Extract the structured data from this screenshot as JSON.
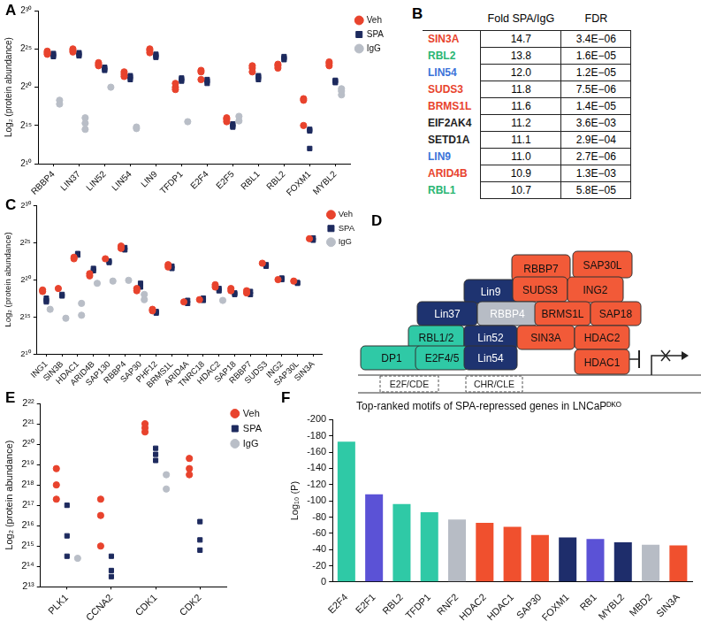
{
  "chart_data": [
    {
      "panel": "A",
      "type": "scatter",
      "y_label": "Log₂ (protein abundance)",
      "categories": [
        "RBBP4",
        "LIN37",
        "LIN52",
        "LIN54",
        "LIN9",
        "TFDP1",
        "E2F4",
        "E2F5",
        "RBL1",
        "RBL2",
        "FOXM1",
        "MYBL2"
      ],
      "series": [
        {
          "name": "Veh",
          "color": "#e8432d",
          "marker": "circle",
          "values": [
            [
              24.5,
              24.3,
              24.7
            ],
            [
              24.8,
              24.6,
              25.0
            ],
            [
              23.2,
              23.0,
              22.8
            ],
            [
              22.0,
              21.7,
              21.4
            ],
            [
              24.8,
              24.5,
              25.0
            ],
            [
              20.0,
              20.5,
              19.7
            ],
            [
              22.2,
              21.0,
              22.0
            ],
            [
              15.8,
              16.0,
              15.5
            ],
            [
              22.5,
              22.0,
              22.8
            ],
            [
              23.0,
              22.8,
              22.5
            ],
            [
              18.5,
              18.3,
              15.0
            ],
            [
              23.1,
              22.8,
              23.3
            ]
          ]
        },
        {
          "name": "SPA",
          "color": "#1d2a5e",
          "marker": "square",
          "values": [
            [
              24.2,
              24.0,
              24.4
            ],
            [
              24.3,
              24.5,
              24.1
            ],
            [
              22.6,
              22.4,
              22.2
            ],
            [
              21.3,
              21.0,
              21.5
            ],
            [
              23.9,
              24.1,
              24.3
            ],
            [
              20.8,
              21.0,
              21.2
            ],
            [
              20.5,
              20.8,
              21.0
            ],
            [
              15.2,
              15.0,
              14.8
            ],
            [
              21.3,
              21.5,
              21.0
            ],
            [
              24.0,
              23.8,
              23.6
            ],
            [
              14.5,
              14.3,
              12.0
            ],
            [
              20.8,
              20.6,
              20.9
            ]
          ]
        },
        {
          "name": "IgG",
          "color": "#b9bec7",
          "marker": "circle",
          "values": [
            [
              18.3,
              17.8
            ],
            [
              16.0,
              14.5,
              15.3
            ],
            [
              20.0
            ],
            [
              14.8,
              14.6
            ],
            null,
            [
              15.5
            ],
            null,
            [
              16.2,
              15.6
            ],
            null,
            null,
            null,
            [
              19.8,
              19.0,
              19.5
            ]
          ]
        }
      ],
      "ylim": [
        10,
        30
      ],
      "yticks": [
        {
          "value": 10,
          "label": "2¹⁰"
        },
        {
          "value": 15,
          "label": "2¹⁵"
        },
        {
          "value": 20,
          "label": "2²⁰"
        },
        {
          "value": 25,
          "label": "2²⁵"
        },
        {
          "value": 30,
          "label": "2³⁰"
        }
      ],
      "grid": false,
      "legend": "right"
    },
    {
      "panel": "C",
      "type": "scatter",
      "y_label": "Log₂ (protein abundance)",
      "categories": [
        "ING1",
        "SIN3B",
        "HDAC1",
        "ARID4B",
        "SAP130",
        "RBBP4",
        "SAP30",
        "PHF12",
        "BRMS1L",
        "ARID4A",
        "TNRC18",
        "HDAC2",
        "SAP18",
        "RBBP7",
        "SUDS3",
        "ING2",
        "SAP30L",
        "SIN3A"
      ],
      "series": [
        {
          "name": "Veh",
          "color": "#e8432d",
          "marker": "circle",
          "values": [
            [
              18.6,
              18.4
            ],
            [
              18.8
            ],
            [
              23.0,
              22.8
            ],
            [
              20.8,
              20.5
            ],
            [
              22.8
            ],
            [
              24.5,
              24.2
            ],
            [
              18.8,
              18.5
            ],
            [
              15.8,
              16.0
            ],
            [
              22.0,
              21.7
            ],
            [
              17.0
            ],
            [
              17.3
            ],
            [
              19.3,
              19.0
            ],
            [
              18.8,
              18.5
            ],
            [
              18.5,
              18.2
            ],
            [
              22.2
            ],
            [
              20.0
            ],
            [
              19.8
            ],
            [
              25.5
            ]
          ]
        },
        {
          "name": "SPA",
          "color": "#1d2a5e",
          "marker": "square",
          "values": [
            [
              17.2,
              17.5,
              17.0
            ],
            [
              17.8,
              18.0
            ],
            [
              23.5,
              23.3
            ],
            [
              21.5,
              21.2
            ],
            [
              22.5,
              22.3
            ],
            [
              24.0,
              24.3
            ],
            [
              19.5,
              19.0
            ],
            [
              15.5,
              15.7
            ],
            [
              21.5,
              21.8
            ],
            [
              16.8,
              17.2
            ],
            [
              17.5,
              17.2
            ],
            [
              18.8,
              18.5
            ],
            [
              18.2,
              18.0
            ],
            [
              18.4,
              18.0
            ],
            [
              22.0,
              21.8
            ],
            [
              20.2,
              20.0
            ],
            [
              19.6,
              19.5
            ],
            [
              25.3,
              25.6
            ]
          ]
        },
        {
          "name": "IgG",
          "color": "#b9bec7",
          "marker": "circle",
          "values": [
            [
              16.0
            ],
            [
              14.8
            ],
            [
              16.8,
              15.2
            ],
            [
              19.5
            ],
            [
              19.8
            ],
            [
              19.9
            ],
            [
              18.0,
              17.3
            ],
            null,
            null,
            null,
            null,
            [
              17.2
            ],
            null,
            null,
            null,
            null,
            null,
            null
          ]
        }
      ],
      "ylim": [
        10,
        30
      ],
      "yticks": [
        {
          "value": 10,
          "label": "2¹⁰"
        },
        {
          "value": 15,
          "label": "2¹⁵"
        },
        {
          "value": 20,
          "label": "2²⁰"
        },
        {
          "value": 25,
          "label": "2²⁵"
        },
        {
          "value": 30,
          "label": "2³⁰"
        }
      ],
      "grid": false,
      "legend": "right"
    },
    {
      "panel": "E",
      "type": "scatter",
      "y_label": "Log₂ (protein abundance)",
      "categories": [
        "PLK1",
        "CCNA2",
        "CDK1",
        "CDK2"
      ],
      "series": [
        {
          "name": "Veh",
          "color": "#e8432d",
          "marker": "circle",
          "values": [
            [
              18.8,
              18.0,
              17.3
            ],
            [
              17.3,
              16.5,
              15.0
            ],
            [
              20.8,
              21.0,
              20.6
            ],
            [
              19.3,
              18.8,
              18.5
            ]
          ]
        },
        {
          "name": "SPA",
          "color": "#1d2a5e",
          "marker": "square",
          "values": [
            [
              17.0,
              15.5,
              14.5
            ],
            [
              14.5,
              13.8,
              13.5
            ],
            [
              19.8,
              19.5,
              19.2
            ],
            [
              16.2,
              15.3,
              14.8
            ]
          ]
        },
        {
          "name": "IgG",
          "color": "#b9bec7",
          "marker": "circle",
          "values": [
            [
              14.4
            ],
            null,
            [
              18.5,
              17.8
            ],
            null
          ]
        }
      ],
      "ylim": [
        13,
        22
      ],
      "yticks": [
        {
          "value": 13,
          "label": "2¹³"
        },
        {
          "value": 14,
          "label": "2¹⁴"
        },
        {
          "value": 15,
          "label": "2¹⁵"
        },
        {
          "value": 16,
          "label": "2¹⁶"
        },
        {
          "value": 17,
          "label": "2¹⁷"
        },
        {
          "value": 18,
          "label": "2¹⁸"
        },
        {
          "value": 19,
          "label": "2¹⁹"
        },
        {
          "value": 20,
          "label": "2²⁰"
        },
        {
          "value": 21,
          "label": "2²¹"
        },
        {
          "value": 22,
          "label": "2²²"
        }
      ],
      "grid": false,
      "legend": "right"
    },
    {
      "panel": "F",
      "type": "bar",
      "title": "Top-ranked motifs of SPA-repressed genes in LNCaPᴰᴷᴼ",
      "y_label": "Log₁₀ (P)",
      "categories": [
        "E2F4",
        "E2F1",
        "RBL2",
        "TFDP1",
        "RNF2",
        "HDAC2",
        "HDAC1",
        "SAP30",
        "FOXM1",
        "RB1",
        "MYBL2",
        "MBD2",
        "SIN3A"
      ],
      "values": [
        -173,
        -108,
        -96,
        -86,
        -77,
        -73,
        -68,
        -58,
        -55,
        -53,
        -49,
        -46,
        -45
      ],
      "colors": [
        "#2fc9a6",
        "#5b52d6",
        "#2fc9a6",
        "#2fc9a6",
        "#b7bcc5",
        "#f0502e",
        "#f0502e",
        "#f0502e",
        "#1e2d6b",
        "#5b52d6",
        "#1e2d6b",
        "#b7bcc5",
        "#f0502e"
      ],
      "ylim": [
        0,
        -200
      ],
      "yticks": [
        0,
        -20,
        -40,
        -60,
        -80,
        -100,
        -120,
        -140,
        -160,
        -180,
        -200
      ],
      "grid": false
    }
  ],
  "table": {
    "panel": "B",
    "header": [
      "Fold SPA/IgG",
      "FDR"
    ],
    "rows": [
      {
        "gene": "SIN3A",
        "color": "#e8432d",
        "fold": "14.7",
        "fdr": "3.4E−06"
      },
      {
        "gene": "RBL2",
        "color": "#2bb673",
        "fold": "13.8",
        "fdr": "1.6E−05"
      },
      {
        "gene": "LIN54",
        "color": "#3b73d9",
        "fold": "12.0",
        "fdr": "1.2E−05"
      },
      {
        "gene": "SUDS3",
        "color": "#e8432d",
        "fold": "11.8",
        "fdr": "7.5E−06"
      },
      {
        "gene": "BRMS1L",
        "color": "#e8432d",
        "fold": "11.6",
        "fdr": "1.4E−05"
      },
      {
        "gene": "EIF2AK4",
        "color": "#222222",
        "fold": "11.2",
        "fdr": "3.6E−03"
      },
      {
        "gene": "SETD1A",
        "color": "#222222",
        "fold": "11.1",
        "fdr": "2.9E−04"
      },
      {
        "gene": "LIN9",
        "color": "#3b73d9",
        "fold": "11.0",
        "fdr": "2.7E−06"
      },
      {
        "gene": "ARID4B",
        "color": "#e8432d",
        "fold": "10.9",
        "fdr": "1.3E−03"
      },
      {
        "gene": "RBL1",
        "color": "#2bb673",
        "fold": "10.7",
        "fdr": "5.8E−05"
      }
    ]
  },
  "diagram": {
    "panel": "D",
    "nodes": [
      {
        "label": "RBBP7",
        "color": "#f25a38"
      },
      {
        "label": "SAP30L",
        "color": "#f25a38"
      },
      {
        "label": "Lin9",
        "color": "#1e3370"
      },
      {
        "label": "SUDS3",
        "color": "#f25a38"
      },
      {
        "label": "ING2",
        "color": "#f25a38"
      },
      {
        "label": "Lin37",
        "color": "#1e3370"
      },
      {
        "label": "RBBP4",
        "color": "#b7bcc5"
      },
      {
        "label": "BRMS1L",
        "color": "#f25a38"
      },
      {
        "label": "SAP18",
        "color": "#f25a38"
      },
      {
        "label": "RBL1/2",
        "color": "#2fc9a6"
      },
      {
        "label": "Lin52",
        "color": "#1e3370"
      },
      {
        "label": "SIN3A",
        "color": "#f25a38"
      },
      {
        "label": "HDAC2",
        "color": "#f25a38"
      },
      {
        "label": "DP1",
        "color": "#2fc9a6"
      },
      {
        "label": "E2F4/5",
        "color": "#2fc9a6"
      },
      {
        "label": "Lin54",
        "color": "#1e3370"
      },
      {
        "label": "HDAC1",
        "color": "#f25a38"
      }
    ],
    "sites": [
      "E2F/CDE",
      "CHR/CLE"
    ]
  }
}
